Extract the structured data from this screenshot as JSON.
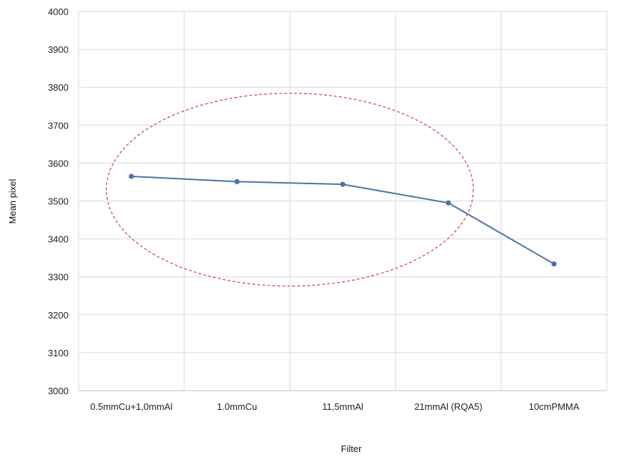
{
  "chart_data": {
    "type": "line",
    "title": "",
    "xlabel": "Filter",
    "ylabel": "Mean pixel",
    "categories": [
      "0.5mmCu+1,0mmAl",
      "1.0mmCu",
      "11,5mmAl",
      "21mmAl (RQA5)",
      "10cmPMMA"
    ],
    "series": [
      {
        "name": "",
        "values": [
          3565,
          3551,
          3544,
          3495,
          3334
        ],
        "color": "#4a72b0"
      }
    ],
    "ylim": [
      3000,
      4000
    ],
    "yticks": [
      3000,
      3100,
      3200,
      3300,
      3400,
      3500,
      3600,
      3700,
      3800,
      3900,
      4000
    ],
    "grid": true,
    "legend": "none",
    "annotation": {
      "type": "dashed-ellipse",
      "color": "#d23c3c",
      "encloses_categories": [
        "0.5mmCu+1,0mmAl",
        "1.0mmCu",
        "11,5mmAl",
        "21mmAl (RQA5)"
      ]
    }
  }
}
